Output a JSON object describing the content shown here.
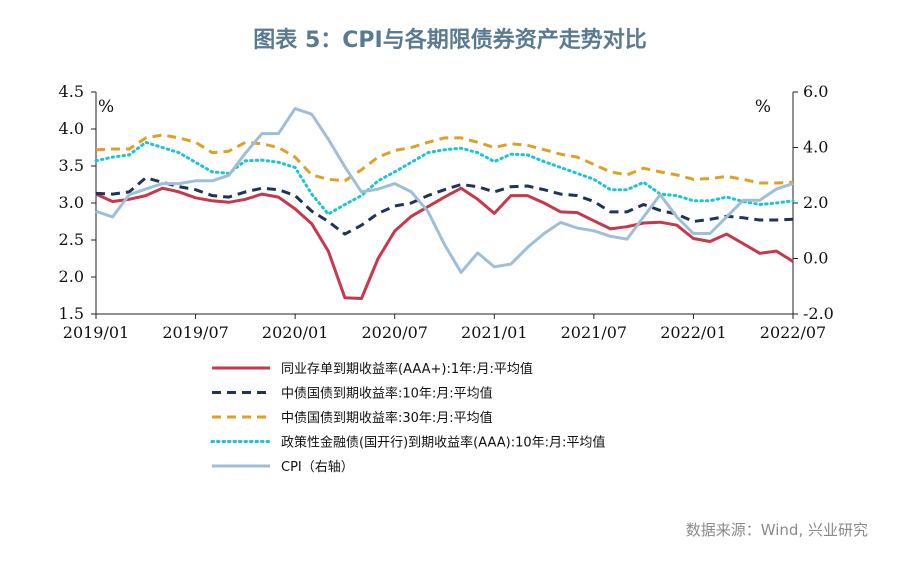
{
  "title": "图表 5：CPI与各期限债券资产走势对比",
  "source": "数据来源：Wind, 兴业研究",
  "chart_data": {
    "type": "line",
    "x": [
      "2019/01",
      "2019/02",
      "2019/03",
      "2019/04",
      "2019/05",
      "2019/06",
      "2019/07",
      "2019/08",
      "2019/09",
      "2019/10",
      "2019/11",
      "2019/12",
      "2020/01",
      "2020/02",
      "2020/03",
      "2020/04",
      "2020/05",
      "2020/06",
      "2020/07",
      "2020/08",
      "2020/09",
      "2020/10",
      "2020/11",
      "2020/12",
      "2021/01",
      "2021/02",
      "2021/03",
      "2021/04",
      "2021/05",
      "2021/06",
      "2021/07",
      "2021/08",
      "2021/09",
      "2021/10",
      "2021/11",
      "2021/12",
      "2022/01",
      "2022/02",
      "2022/03",
      "2022/04",
      "2022/05",
      "2022/06",
      "2022/07"
    ],
    "x_tick_labels": [
      "2019/01",
      "2019/07",
      "2020/01",
      "2020/07",
      "2021/01",
      "2021/07",
      "2022/01",
      "2022/07"
    ],
    "y_left": {
      "range": [
        1.5,
        4.5
      ],
      "ticks": [
        "1.5",
        "2.0",
        "2.5",
        "3.0",
        "3.5",
        "4.0",
        "4.5"
      ],
      "unit": "%"
    },
    "y_right": {
      "range": [
        -2.0,
        6.0
      ],
      "ticks": [
        "-2.0",
        "0.0",
        "2.0",
        "4.0",
        "6.0"
      ],
      "unit": "%"
    },
    "series": [
      {
        "name": "同业存单到期收益率(AAA+):1年:月:平均值",
        "axis": "left",
        "color": "#c8374a",
        "style": "solid",
        "values": [
          3.12,
          3.02,
          3.05,
          3.1,
          3.2,
          3.15,
          3.07,
          3.03,
          3.01,
          3.05,
          3.12,
          3.08,
          2.92,
          2.72,
          2.35,
          1.72,
          1.71,
          2.25,
          2.62,
          2.82,
          2.95,
          3.08,
          3.2,
          3.05,
          2.86,
          3.1,
          3.1,
          3.0,
          2.88,
          2.87,
          2.76,
          2.65,
          2.68,
          2.73,
          2.74,
          2.7,
          2.52,
          2.48,
          2.58,
          2.45,
          2.32,
          2.35,
          2.21
        ]
      },
      {
        "name": "中债国债到期收益率:10年:月:平均值",
        "axis": "left",
        "color": "#1f3456",
        "style": "dashed",
        "values": [
          3.13,
          3.12,
          3.15,
          3.34,
          3.28,
          3.22,
          3.18,
          3.1,
          3.08,
          3.15,
          3.2,
          3.18,
          3.1,
          2.89,
          2.75,
          2.58,
          2.7,
          2.86,
          2.96,
          3.0,
          3.1,
          3.18,
          3.25,
          3.22,
          3.15,
          3.22,
          3.23,
          3.18,
          3.12,
          3.1,
          3.02,
          2.88,
          2.88,
          2.98,
          2.9,
          2.85,
          2.75,
          2.78,
          2.82,
          2.8,
          2.77,
          2.77,
          2.78
        ]
      },
      {
        "name": "中债国债到期收益率:30年:月:平均值",
        "axis": "left",
        "color": "#e0a026",
        "style": "dashed",
        "values": [
          3.72,
          3.73,
          3.73,
          3.88,
          3.92,
          3.88,
          3.82,
          3.68,
          3.7,
          3.82,
          3.8,
          3.75,
          3.62,
          3.38,
          3.32,
          3.3,
          3.45,
          3.62,
          3.71,
          3.75,
          3.82,
          3.88,
          3.88,
          3.82,
          3.75,
          3.8,
          3.78,
          3.72,
          3.66,
          3.62,
          3.52,
          3.42,
          3.38,
          3.47,
          3.42,
          3.38,
          3.32,
          3.33,
          3.36,
          3.32,
          3.27,
          3.27,
          3.28
        ]
      },
      {
        "name": "政策性金融债(国开行)到期收益率(AAA):10年:月:平均值",
        "axis": "left",
        "color": "#1ec4d6",
        "style": "dotted",
        "values": [
          3.57,
          3.62,
          3.65,
          3.82,
          3.75,
          3.68,
          3.55,
          3.42,
          3.4,
          3.57,
          3.58,
          3.55,
          3.48,
          3.12,
          2.85,
          2.98,
          3.1,
          3.3,
          3.42,
          3.55,
          3.68,
          3.72,
          3.74,
          3.68,
          3.56,
          3.66,
          3.65,
          3.56,
          3.48,
          3.4,
          3.32,
          3.18,
          3.18,
          3.28,
          3.12,
          3.1,
          3.03,
          3.03,
          3.08,
          3.02,
          2.98,
          3.0,
          3.03
        ]
      },
      {
        "name": "CPI（右轴）",
        "axis": "right",
        "color": "#9ebfd7",
        "style": "solid",
        "values": [
          1.7,
          1.5,
          2.3,
          2.5,
          2.7,
          2.7,
          2.8,
          2.8,
          3.0,
          3.8,
          4.5,
          4.5,
          5.4,
          5.2,
          4.3,
          3.3,
          2.4,
          2.5,
          2.7,
          2.4,
          1.7,
          0.5,
          -0.5,
          0.2,
          -0.3,
          -0.2,
          0.4,
          0.9,
          1.3,
          1.1,
          1.0,
          0.8,
          0.7,
          1.5,
          2.3,
          1.5,
          0.9,
          0.9,
          1.5,
          2.1,
          2.1,
          2.5,
          2.7
        ]
      }
    ],
    "grid": false,
    "legend": "bottom"
  }
}
